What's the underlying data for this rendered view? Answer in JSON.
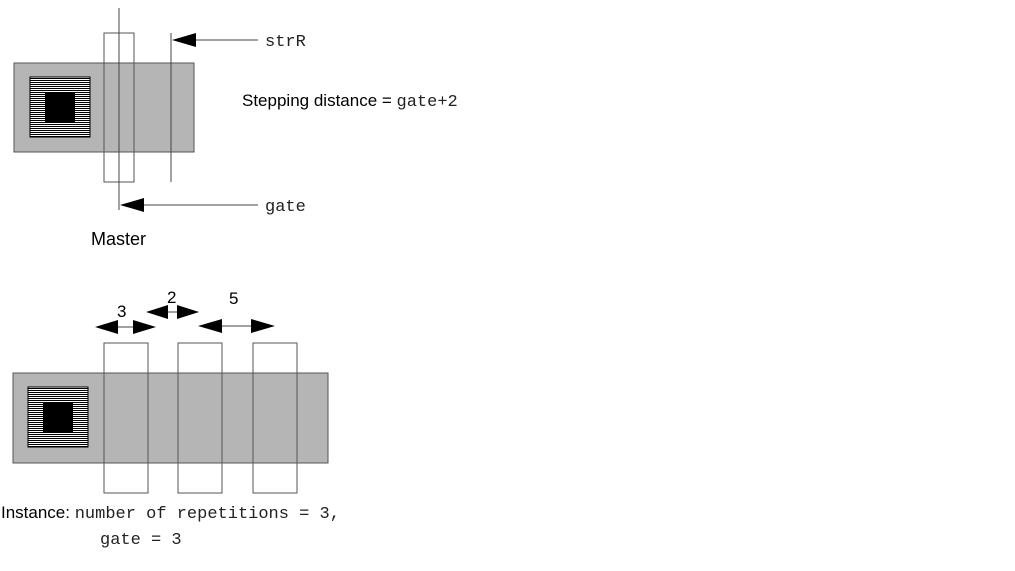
{
  "colors": {
    "diffusion_fill": "#b5b5b5",
    "outline": "#555555",
    "contact": "#000000",
    "background": "#ffffff"
  },
  "master": {
    "label": "Master",
    "strR_label": "strR",
    "gate_label": "gate",
    "stepping_prefix": "Stepping distance = ",
    "stepping_value": "gate+2"
  },
  "instance": {
    "prefix": "Instance: ",
    "line1": "number of repetitions = 3,",
    "line2": "gate = 3",
    "dim_gate": "3",
    "dim_space": "2",
    "dim_step": "5"
  },
  "icons": [
    "contact-icon",
    "arrow-icon"
  ]
}
